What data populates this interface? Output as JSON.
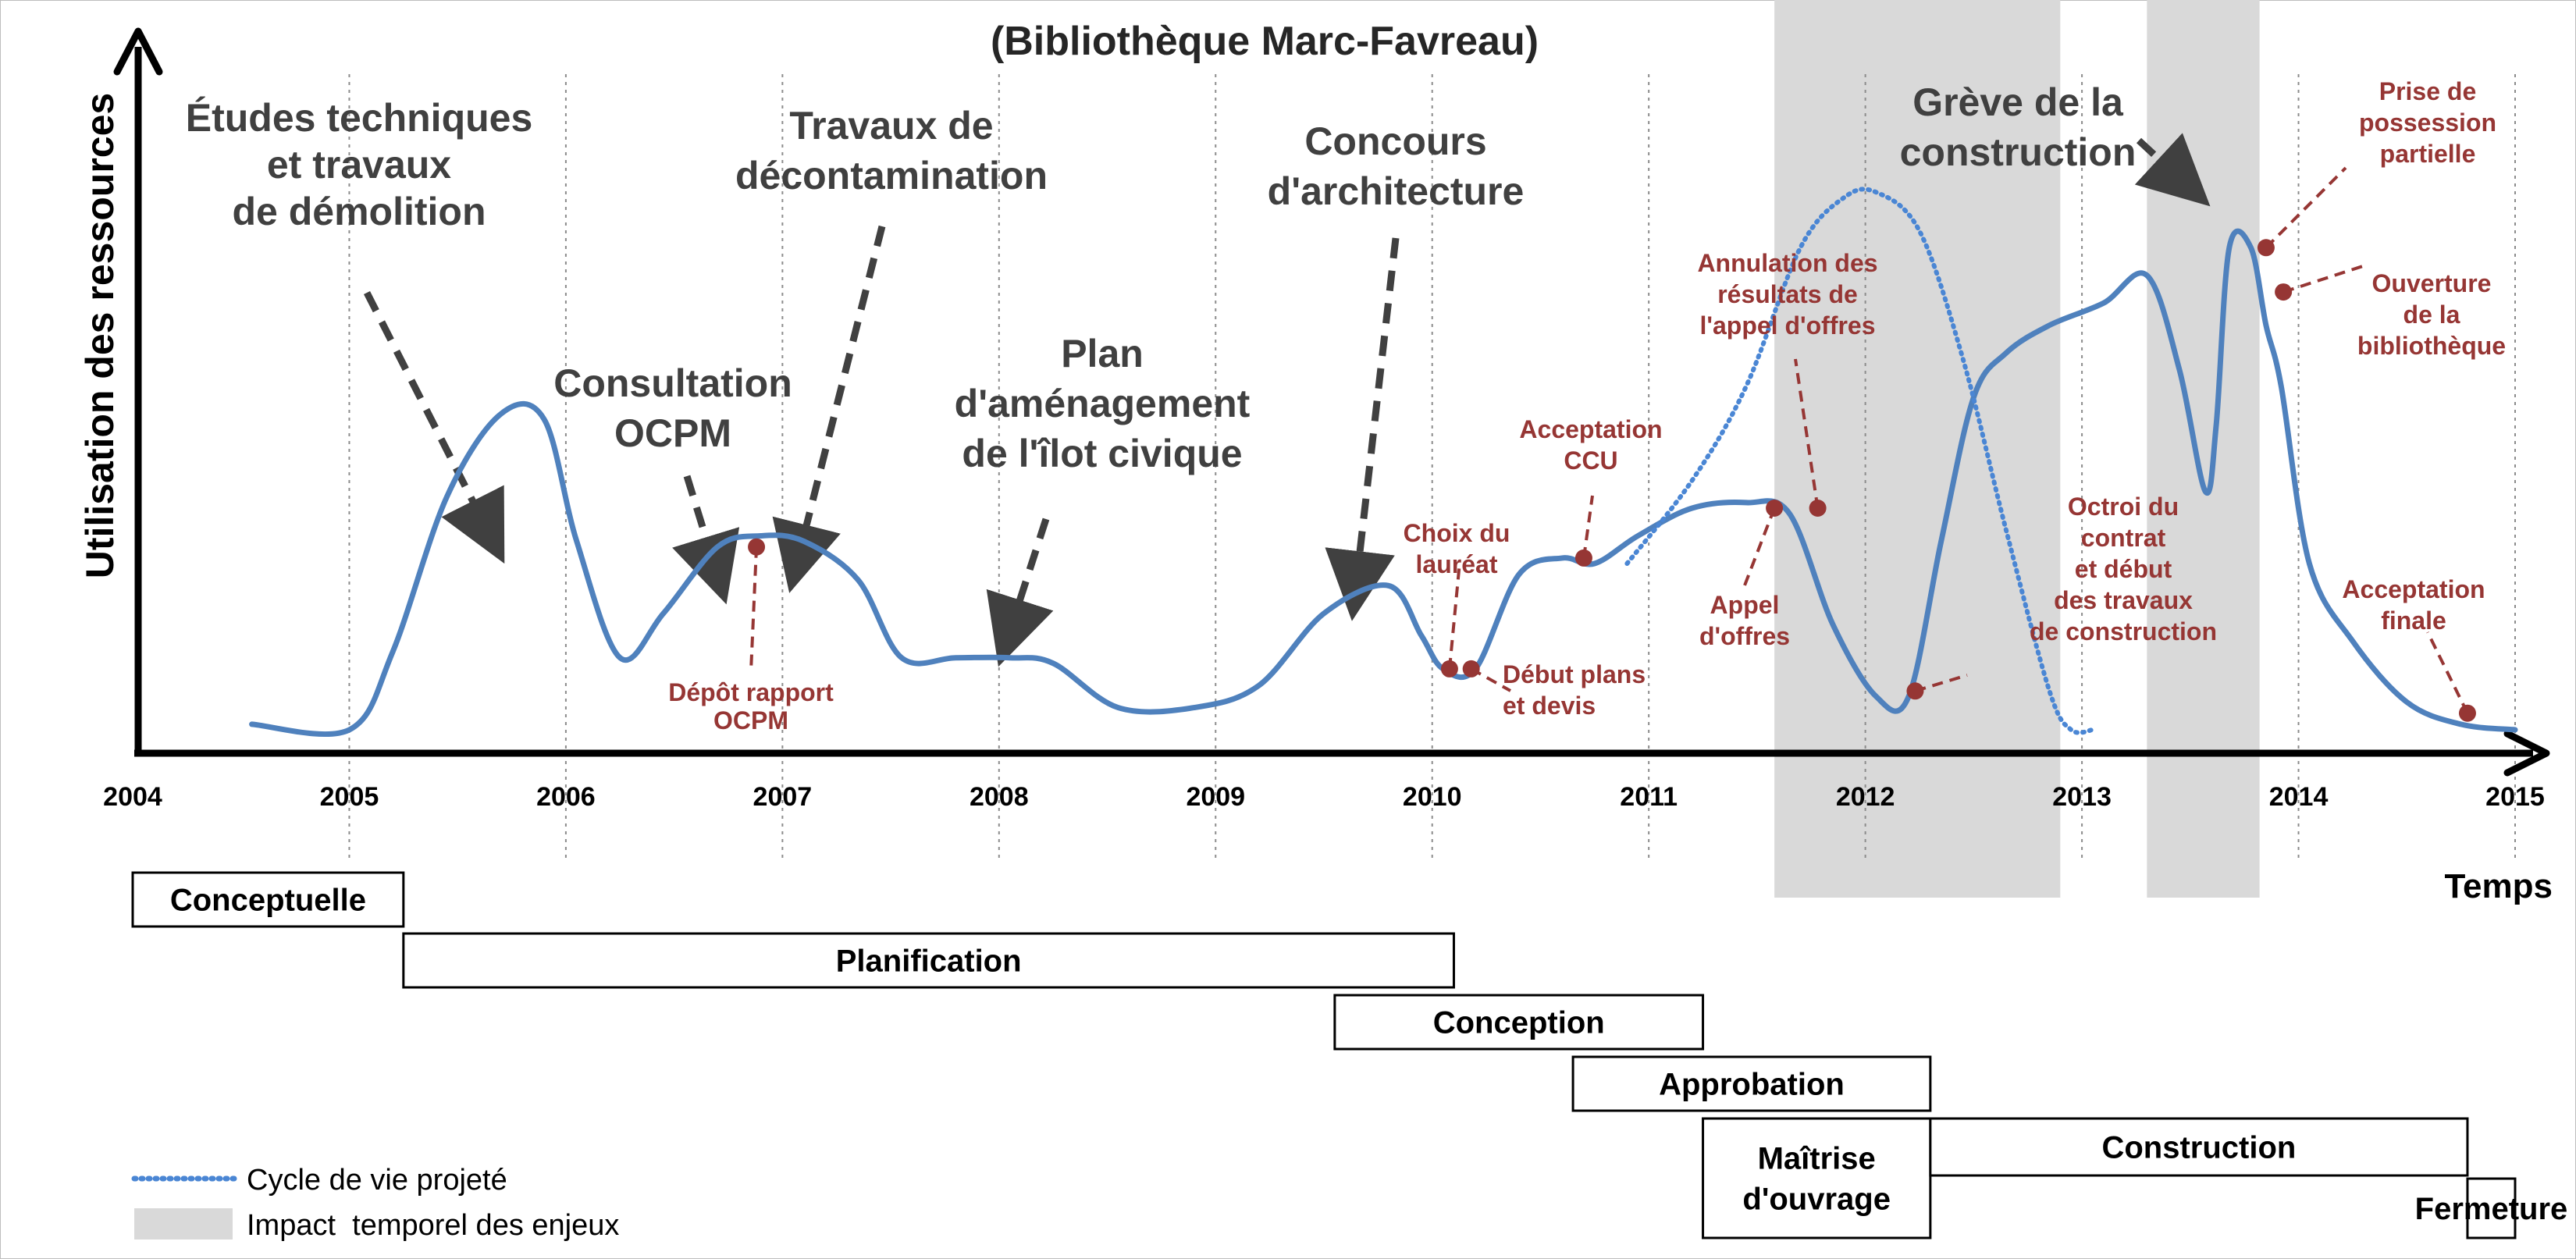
{
  "chart_data": {
    "type": "line",
    "title": "",
    "subtitle": "(Bibliothèque Marc-Favreau)",
    "xlabel": "Temps",
    "ylabel": "Utilisation des ressources",
    "xlim": [
      2004,
      2015
    ],
    "ylim": [
      0,
      1
    ],
    "grid": "vertical-dotted",
    "x_ticks": [
      "2004",
      "2005",
      "2006",
      "2007",
      "2008",
      "2009",
      "2010",
      "2011",
      "2012",
      "2013",
      "2014",
      "2015"
    ],
    "series": [
      {
        "name": "",
        "color": "#4f81bd",
        "style": "solid",
        "x": [
          2004.55,
          2005.0,
          2005.2,
          2005.45,
          2005.7,
          2005.9,
          2006.05,
          2006.25,
          2006.45,
          2006.7,
          2006.9,
          2007.1,
          2007.35,
          2007.55,
          2007.8,
          2008.05,
          2008.25,
          2008.55,
          2008.9,
          2009.2,
          2009.5,
          2009.8,
          2009.95,
          2010.05,
          2010.2,
          2010.4,
          2010.6,
          2010.75,
          2010.95,
          2011.2,
          2011.45,
          2011.65,
          2011.85,
          2012.05,
          2012.2,
          2012.35,
          2012.5,
          2012.65,
          2012.85,
          2013.1,
          2013.3,
          2013.45,
          2013.57,
          2013.62,
          2013.68,
          2013.78,
          2013.85,
          2013.92,
          2014.05,
          2014.25,
          2014.5,
          2014.75,
          2015.0
        ],
        "y": [
          0.01,
          0.0,
          0.14,
          0.42,
          0.57,
          0.56,
          0.34,
          0.13,
          0.21,
          0.33,
          0.35,
          0.34,
          0.27,
          0.13,
          0.13,
          0.13,
          0.12,
          0.04,
          0.04,
          0.08,
          0.21,
          0.26,
          0.17,
          0.11,
          0.11,
          0.28,
          0.31,
          0.3,
          0.35,
          0.4,
          0.41,
          0.39,
          0.19,
          0.06,
          0.06,
          0.34,
          0.6,
          0.68,
          0.73,
          0.77,
          0.82,
          0.65,
          0.43,
          0.55,
          0.87,
          0.87,
          0.73,
          0.62,
          0.3,
          0.16,
          0.05,
          0.01,
          0.0
        ]
      },
      {
        "name": "Cycle de vie projeté",
        "color": "#4a86d4",
        "style": "dotted",
        "x": [
          2010.9,
          2011.2,
          2011.45,
          2011.7,
          2011.9,
          2012.05,
          2012.25,
          2012.45,
          2012.65,
          2012.85,
          2012.95,
          2013.05
        ],
        "y": [
          0.3,
          0.45,
          0.62,
          0.87,
          0.96,
          0.97,
          0.9,
          0.67,
          0.36,
          0.07,
          0.0,
          0.0
        ]
      }
    ],
    "shaded_regions": [
      {
        "label": "Impact  temporel des enjeux",
        "x": [
          2011.58,
          2012.9
        ]
      },
      {
        "label": "Impact  temporel des enjeux",
        "x": [
          2013.3,
          2013.82
        ]
      }
    ],
    "events": [
      {
        "label": "Dépôt rapport\nOCPM",
        "x": 2006.88,
        "y": 0.33
      },
      {
        "label": "Choix du\nlauréat",
        "x": 2010.08,
        "y": 0.11
      },
      {
        "label": "Début plans\net devis",
        "x": 2010.18,
        "y": 0.11
      },
      {
        "label": "Acceptation\nCCU",
        "x": 2010.7,
        "y": 0.31
      },
      {
        "label": "Appel\nd'offres",
        "x": 2011.58,
        "y": 0.4
      },
      {
        "label": "Annulation des\nrésultats de\nl'appel d'offres",
        "x": 2011.78,
        "y": 0.4
      },
      {
        "label": "Octroi du\ncontrat\net début\ndes travaux\nde construction",
        "x": 2012.23,
        "y": 0.07
      },
      {
        "label": "Prise de\npossession\npartielle",
        "x": 2013.85,
        "y": 0.87
      },
      {
        "label": "Ouverture\nde la\nbibliothèque",
        "x": 2013.93,
        "y": 0.79
      },
      {
        "label": "Acceptation\nfinale",
        "x": 2014.78,
        "y": 0.03
      }
    ],
    "annotations": [
      "Études techniques\net travaux\nde démolition",
      "Consultation\nOCPM",
      "Travaux de\ndécontamination",
      "Plan\nd'aménagement\nde l'îlot civique",
      "Concours\nd'architecture",
      "Grève de la\nconstruction"
    ],
    "phases": [
      {
        "label": "Conceptuelle",
        "start": 2004.0,
        "end": 2005.25
      },
      {
        "label": "Planification",
        "start": 2005.25,
        "end": 2010.1
      },
      {
        "label": "Conception",
        "start": 2009.55,
        "end": 2011.25
      },
      {
        "label": "Approbation",
        "start": 2010.65,
        "end": 2012.3
      },
      {
        "label": "Maîtrise\nd'ouvrage",
        "start": 2011.25,
        "end": 2012.3
      },
      {
        "label": "Construction",
        "start": 2012.3,
        "end": 2014.78
      },
      {
        "label": "Fermeture",
        "start": 2014.78,
        "end": 2015.0
      }
    ],
    "legend": [
      {
        "label": "Cycle de vie projeté",
        "style": "dotted",
        "color": "#4a86d4"
      },
      {
        "label": "Impact  temporel des enjeux",
        "style": "box",
        "color": "#d9d9d9"
      }
    ],
    "legend_position": "bottom-left"
  }
}
